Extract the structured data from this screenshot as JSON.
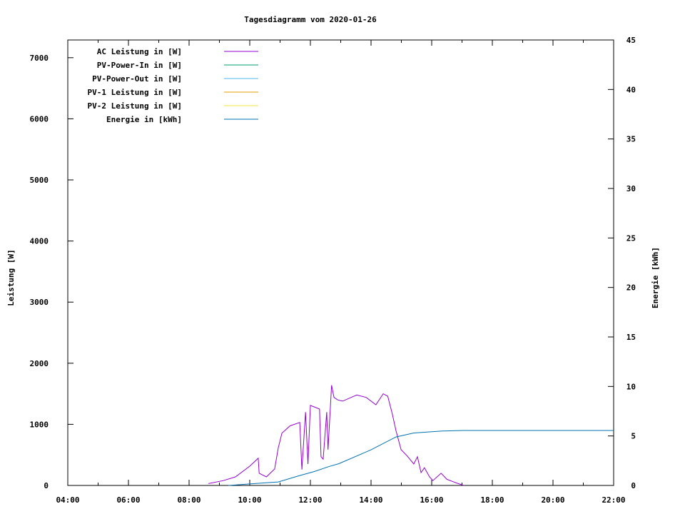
{
  "chart_data": {
    "type": "line",
    "title": "Tagesdiagramm vom 2020-01-26",
    "xlabel": "",
    "ylabel": "Leistung [W]",
    "y2label": "Energie [kWh]",
    "xlim": [
      4,
      22
    ],
    "ylim": [
      0,
      7290
    ],
    "y2lim": [
      0,
      45
    ],
    "x_ticks": [
      "04:00",
      "06:00",
      "08:00",
      "10:00",
      "12:00",
      "14:00",
      "16:00",
      "18:00",
      "20:00",
      "22:00"
    ],
    "y_ticks": [
      0,
      1000,
      2000,
      3000,
      4000,
      5000,
      6000,
      7000
    ],
    "y2_ticks": [
      0,
      5,
      10,
      15,
      20,
      25,
      30,
      35,
      40,
      45
    ],
    "grid": false,
    "legend_placement": "top-left",
    "series": [
      {
        "name": "AC Leistung in [W]",
        "axis": "y",
        "color": "#9400d3",
        "x": [
          8.64,
          9.13,
          9.53,
          10.0,
          10.28,
          10.31,
          10.55,
          10.82,
          10.94,
          11.06,
          11.33,
          11.65,
          11.72,
          11.84,
          11.92,
          12.0,
          12.3,
          12.35,
          12.42,
          12.54,
          12.58,
          12.7,
          12.78,
          12.9,
          13.06,
          13.53,
          13.84,
          14.16,
          14.4,
          14.55,
          14.7,
          14.82,
          14.99,
          15.18,
          15.41,
          15.53,
          15.65,
          15.76,
          15.93,
          16.04,
          16.31,
          16.5,
          16.82,
          17.06
        ],
        "y": [
          30,
          80,
          140,
          315,
          445,
          200,
          140,
          270,
          610,
          855,
          975,
          1030,
          260,
          1200,
          350,
          1310,
          1250,
          470,
          430,
          1200,
          585,
          1640,
          1440,
          1400,
          1380,
          1480,
          1440,
          1320,
          1500,
          1460,
          1170,
          900,
          585,
          490,
          350,
          470,
          210,
          290,
          140,
          80,
          200,
          100,
          40,
          0
        ]
      },
      {
        "name": "PV-Power-In in [W]",
        "axis": "y",
        "color": "#009e73",
        "x": [],
        "y": []
      },
      {
        "name": "PV-Power-Out in [W]",
        "axis": "y",
        "color": "#56b4e9",
        "x": [],
        "y": []
      },
      {
        "name": "PV-1 Leistung in [W]",
        "axis": "y",
        "color": "#e69f00",
        "x": [],
        "y": []
      },
      {
        "name": "PV-2 Leistung in [W]",
        "axis": "y",
        "color": "#f0e442",
        "x": [],
        "y": []
      },
      {
        "name": "Energie in [kWh]",
        "axis": "y2",
        "color": "#0072b2",
        "x": [
          9.3,
          10.0,
          10.94,
          11.65,
          12.12,
          12.6,
          12.94,
          14.0,
          14.82,
          15.41,
          16.35,
          17.06,
          22.0
        ],
        "y": [
          0,
          0.15,
          0.35,
          1.0,
          1.4,
          1.9,
          2.2,
          3.6,
          4.9,
          5.3,
          5.5,
          5.55,
          5.55
        ]
      }
    ]
  }
}
